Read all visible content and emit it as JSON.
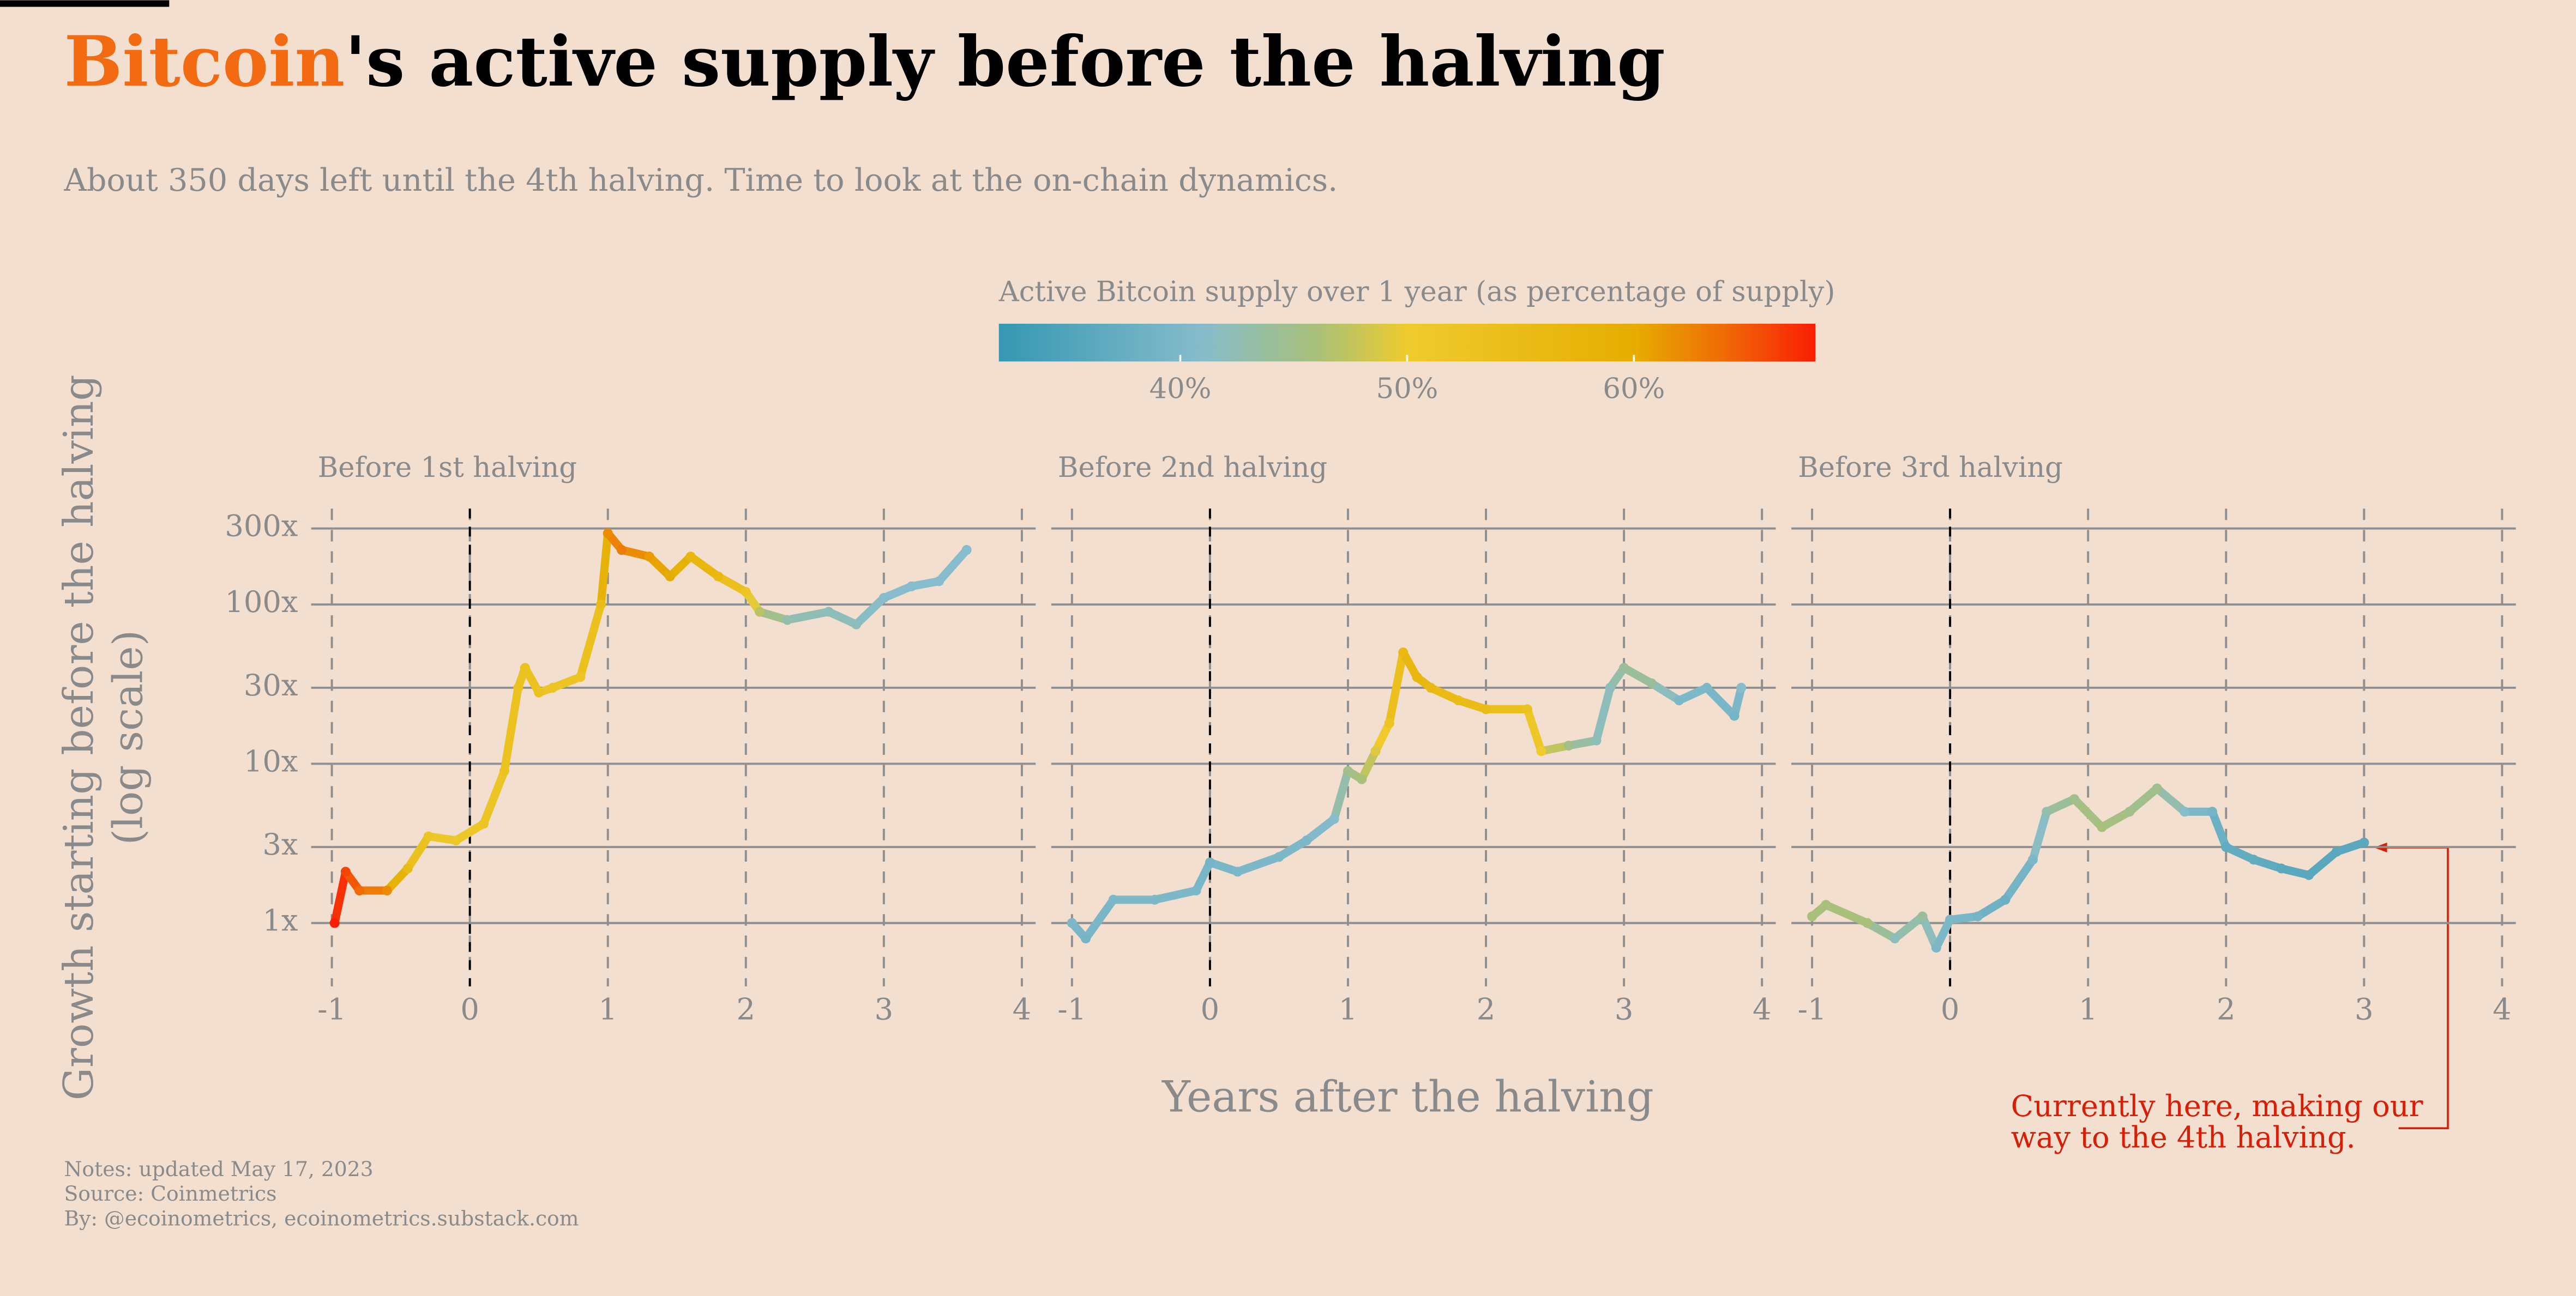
{
  "chart_data": {
    "type": "scatter",
    "title_highlight": "Bitcoin",
    "title_rest": "'s active supply before the halving",
    "subtitle": "About 350 days left until the 4th halving. Time to look at the on-chain dynamics.",
    "colorbar": {
      "title": "Active Bitcoin supply over 1 year (as percentage of supply)",
      "clim": [
        32,
        68
      ],
      "ticks": [
        {
          "value": 40,
          "label": "40%"
        },
        {
          "value": 50,
          "label": "50%"
        },
        {
          "value": 60,
          "label": "60%"
        }
      ],
      "colorscale": [
        [
          32,
          "#3598b2"
        ],
        [
          41,
          "#86bccb"
        ],
        [
          46,
          "#a8c07a"
        ],
        [
          50,
          "#eecb2e"
        ],
        [
          60,
          "#e6ad00"
        ],
        [
          64,
          "#f06a06"
        ],
        [
          68,
          "#fa1e04"
        ]
      ]
    },
    "x_label": "Years after the halving",
    "y_label": [
      "Growth starting before the halving",
      "(log scale)"
    ],
    "log_y": true,
    "grid": true,
    "halving_line": 0,
    "xlim": [
      -1.15,
      4.1
    ],
    "xticks": [
      -1,
      0,
      1,
      2,
      3,
      4
    ],
    "ylim": [
      0.4,
      400
    ],
    "yticks": [
      {
        "value": 1,
        "label": "1x"
      },
      {
        "value": 3,
        "label": "3x"
      },
      {
        "value": 10,
        "label": "10x"
      },
      {
        "value": 30,
        "label": "30x"
      },
      {
        "value": 100,
        "label": "100x"
      },
      {
        "value": 300,
        "label": "300x"
      }
    ],
    "series": [
      {
        "name": "Before 1st halving",
        "x": [
          -0.98,
          -0.9,
          -0.8,
          -0.6,
          -0.45,
          -0.3,
          -0.1,
          0.1,
          0.25,
          0.35,
          0.4,
          0.5,
          0.6,
          0.8,
          0.95,
          1.0,
          1.1,
          1.3,
          1.45,
          1.6,
          1.8,
          2.0,
          2.1,
          2.3,
          2.6,
          2.8,
          3.0,
          3.2,
          3.4,
          3.6
        ],
        "values": [
          1.0,
          2.1,
          1.6,
          1.6,
          2.2,
          3.5,
          3.3,
          4.2,
          9,
          30,
          40,
          28,
          30,
          35,
          100,
          280,
          220,
          200,
          150,
          200,
          150,
          120,
          90,
          80,
          90,
          75,
          110,
          130,
          140,
          220
        ],
        "supply": [
          68,
          66,
          64,
          62,
          55,
          52,
          51,
          52,
          53,
          53,
          53,
          53,
          52,
          52,
          55,
          62,
          63,
          61,
          60,
          57,
          56,
          52,
          47,
          43,
          42,
          42,
          41,
          41,
          41,
          41
        ]
      },
      {
        "name": "Before 2nd halving",
        "x": [
          -1,
          -0.9,
          -0.7,
          -0.4,
          -0.1,
          0,
          0.2,
          0.5,
          0.7,
          0.9,
          1.0,
          1.1,
          1.2,
          1.3,
          1.4,
          1.5,
          1.6,
          1.8,
          2.0,
          2.3,
          2.4,
          2.6,
          2.8,
          2.9,
          3.0,
          3.2,
          3.4,
          3.6,
          3.8,
          3.85
        ],
        "values": [
          1.0,
          0.8,
          1.4,
          1.4,
          1.6,
          2.4,
          2.1,
          2.6,
          3.3,
          4.5,
          9,
          8,
          12,
          18,
          50,
          35,
          30,
          25,
          22,
          22,
          12,
          13,
          14,
          30,
          40,
          32,
          25,
          30,
          20,
          30
        ],
        "supply": [
          40,
          39,
          40,
          40,
          40,
          39,
          40,
          40,
          40,
          41,
          45,
          46,
          49,
          52,
          56,
          57,
          56,
          55,
          55,
          53,
          50,
          45,
          42,
          42,
          44,
          44,
          40,
          40,
          39,
          41
        ]
      },
      {
        "name": "Before 3rd halving",
        "x": [
          -1,
          -0.9,
          -0.6,
          -0.4,
          -0.2,
          -0.1,
          0,
          0.2,
          0.4,
          0.6,
          0.7,
          0.9,
          1.1,
          1.3,
          1.5,
          1.7,
          1.9,
          2.0,
          2.2,
          2.4,
          2.6,
          2.8,
          3.0
        ],
        "values": [
          1.1,
          1.3,
          1.0,
          0.8,
          1.1,
          0.7,
          1.05,
          1.1,
          1.4,
          2.5,
          5,
          6,
          4,
          5,
          7,
          5,
          5,
          3,
          2.5,
          2.2,
          2.0,
          2.8,
          3.2
        ],
        "supply": [
          46,
          46,
          46,
          42,
          44,
          40,
          40,
          39,
          38,
          40,
          43,
          45,
          46,
          45,
          45,
          41,
          39,
          37,
          37,
          36,
          36,
          36,
          36
        ]
      }
    ],
    "annotation": [
      "Currently here, making our",
      "way to the 4th halving."
    ],
    "notes": [
      "Notes: updated May 17, 2023",
      "Source: Coinmetrics",
      "By: @ecoinometrics, ecoinometrics.substack.com"
    ]
  }
}
